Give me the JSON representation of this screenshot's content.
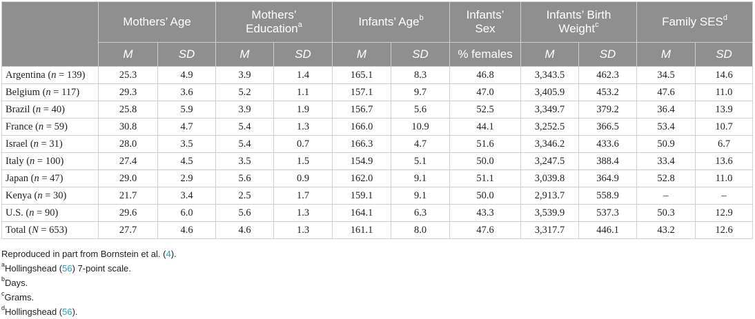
{
  "header": {
    "groups": [
      {
        "label": "Mothers’ Age",
        "sup": ""
      },
      {
        "label": "Mothers’ Education",
        "sup": "a"
      },
      {
        "label": "Infants’ Age",
        "sup": "b"
      },
      {
        "label": "Infants’ Sex",
        "sup": ""
      },
      {
        "label": "Infants’ Birth Weight",
        "sup": "c"
      },
      {
        "label": "Family SES",
        "sup": "d"
      }
    ],
    "sub": [
      "M",
      "SD",
      "M",
      "SD",
      "M",
      "SD",
      "% females",
      "M",
      "SD",
      "M",
      "SD"
    ]
  },
  "rows": [
    {
      "country": "Argentina",
      "n_label": "n",
      "n_value": "= 139",
      "values": [
        "25.3",
        "4.9",
        "3.9",
        "1.4",
        "165.1",
        "8.3",
        "46.8",
        "3,343.5",
        "462.3",
        "34.5",
        "14.6"
      ]
    },
    {
      "country": "Belgium",
      "n_label": "n",
      "n_value": "= 117",
      "values": [
        "29.3",
        "3.6",
        "5.2",
        "1.1",
        "157.1",
        "9.7",
        "47.0",
        "3,405.9",
        "453.2",
        "47.6",
        "11.0"
      ]
    },
    {
      "country": "Brazil",
      "n_label": "n",
      "n_value": "= 40",
      "values": [
        "25.8",
        "5.9",
        "3.9",
        "1.9",
        "156.7",
        "5.6",
        "52.5",
        "3,349.7",
        "379.2",
        "36.4",
        "13.9"
      ]
    },
    {
      "country": "France",
      "n_label": "n",
      "n_value": "= 59",
      "values": [
        "30.8",
        "4.7",
        "5.4",
        "1.3",
        "166.0",
        "10.9",
        "44.1",
        "3,252.5",
        "366.5",
        "53.4",
        "10.7"
      ]
    },
    {
      "country": "Israel",
      "n_label": "n",
      "n_value": "= 31",
      "values": [
        "28.0",
        "3.5",
        "5.4",
        "0.7",
        "166.3",
        "4.7",
        "51.6",
        "3,346.2",
        "433.6",
        "50.9",
        "6.7"
      ]
    },
    {
      "country": "Italy",
      "n_label": "n",
      "n_value": "= 100",
      "values": [
        "27.4",
        "4.5",
        "3.5",
        "1.5",
        "154.9",
        "5.1",
        "50.0",
        "3,247.5",
        "388.4",
        "33.4",
        "13.6"
      ]
    },
    {
      "country": "Japan",
      "n_label": "n",
      "n_value": "= 47",
      "values": [
        "29.0",
        "2.9",
        "5.6",
        "0.9",
        "162.0",
        "9.1",
        "51.1",
        "3,039.8",
        "364.9",
        "52.8",
        "11.0"
      ]
    },
    {
      "country": "Kenya",
      "n_label": "n",
      "n_value": "= 30",
      "values": [
        "21.7",
        "3.4",
        "2.5",
        "1.7",
        "159.1",
        "9.1",
        "50.0",
        "2,913.7",
        "558.9",
        "–",
        "–"
      ]
    },
    {
      "country": "U.S.",
      "n_label": "n",
      "n_value": "= 90",
      "values": [
        "29.6",
        "6.0",
        "5.6",
        "1.3",
        "164.1",
        "6.3",
        "43.3",
        "3,539.9",
        "537.3",
        "50.3",
        "12.9"
      ]
    },
    {
      "country": "Total",
      "n_label": "N",
      "n_value": "= 653",
      "values": [
        "27.7",
        "4.6",
        "4.6",
        "1.3",
        "161.1",
        "8.0",
        "47.6",
        "3,317.7",
        "446.1",
        "43.2",
        "12.6"
      ]
    }
  ],
  "notes": [
    {
      "sup": "",
      "before": "Reproduced in part from Bornstein et al. (",
      "ref": "4",
      "after": ")."
    },
    {
      "sup": "a",
      "before": "Hollingshead (",
      "ref": "56",
      "after": ") 7-point scale."
    },
    {
      "sup": "b",
      "before": "Days.",
      "ref": "",
      "after": ""
    },
    {
      "sup": "c",
      "before": "Grams.",
      "ref": "",
      "after": ""
    },
    {
      "sup": "d",
      "before": "Hollingshead (",
      "ref": "56",
      "after": ")."
    }
  ],
  "colors": {
    "header_bg": "#8f8f8f",
    "header_text": "#ffffff",
    "link": "#2a9fb5",
    "grid": "#cfcfcf"
  }
}
